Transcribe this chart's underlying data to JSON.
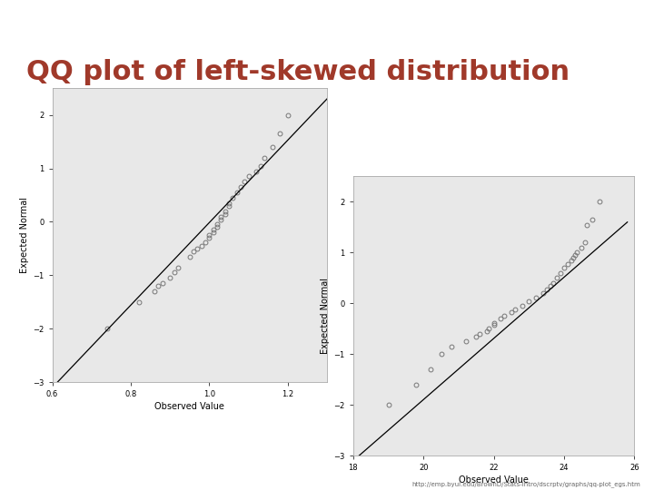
{
  "title": "QQ plot of left-skewed distribution",
  "title_color": "#A0392A",
  "title_fontsize": 22,
  "header_color": "#8B9E96",
  "body_color": "#FFFFFF",
  "plot_bg_color": "#E8E8E8",
  "url_text": "http://emp.byui.edu/BrownD/Stats-intro/dscrptv/graphs/qq-plot_egs.htm",
  "plot1": {
    "xlabel": "Observed Value",
    "ylabel": "Expected Normal",
    "xlim": [
      0.6,
      1.3
    ],
    "ylim": [
      -3.0,
      2.5
    ],
    "xticks": [
      0.6,
      0.8,
      1.0,
      1.2
    ],
    "yticks": [
      -3,
      -2,
      -1,
      0,
      1,
      2
    ],
    "points_x": [
      0.74,
      0.82,
      0.86,
      0.87,
      0.88,
      0.9,
      0.91,
      0.92,
      0.95,
      0.96,
      0.97,
      0.98,
      0.99,
      1.0,
      1.0,
      1.01,
      1.01,
      1.02,
      1.02,
      1.03,
      1.03,
      1.04,
      1.04,
      1.05,
      1.05,
      1.06,
      1.07,
      1.08,
      1.09,
      1.1,
      1.12,
      1.13,
      1.14,
      1.16,
      1.18,
      1.2
    ],
    "points_y": [
      -2.0,
      -1.5,
      -1.3,
      -1.2,
      -1.15,
      -1.05,
      -0.95,
      -0.85,
      -0.65,
      -0.55,
      -0.5,
      -0.45,
      -0.38,
      -0.3,
      -0.25,
      -0.2,
      -0.15,
      -0.1,
      -0.05,
      0.05,
      0.1,
      0.15,
      0.2,
      0.3,
      0.35,
      0.45,
      0.55,
      0.65,
      0.75,
      0.85,
      0.95,
      1.05,
      1.2,
      1.4,
      1.65,
      2.0
    ],
    "line_x": [
      0.6,
      1.3
    ],
    "line_y": [
      -3.1,
      2.3
    ]
  },
  "plot2": {
    "xlabel": "Observed Value",
    "ylabel": "Expected Normal",
    "xlim": [
      18,
      26
    ],
    "ylim": [
      -3.0,
      2.5
    ],
    "xticks": [
      18,
      20,
      22,
      24,
      26
    ],
    "yticks": [
      -3,
      -2,
      -1,
      0,
      1,
      2
    ],
    "points_x": [
      19.0,
      19.8,
      20.2,
      20.5,
      20.8,
      21.2,
      21.5,
      21.6,
      21.8,
      21.85,
      22.0,
      22.0,
      22.2,
      22.3,
      22.5,
      22.6,
      22.8,
      23.0,
      23.2,
      23.4,
      23.5,
      23.6,
      23.7,
      23.8,
      23.9,
      24.0,
      24.1,
      24.2,
      24.25,
      24.3,
      24.35,
      24.5,
      24.6,
      24.65,
      24.8,
      25.0
    ],
    "points_y": [
      -2.0,
      -1.6,
      -1.3,
      -1.0,
      -0.85,
      -0.75,
      -0.65,
      -0.6,
      -0.55,
      -0.5,
      -0.42,
      -0.38,
      -0.3,
      -0.25,
      -0.18,
      -0.12,
      -0.05,
      0.05,
      0.12,
      0.2,
      0.28,
      0.35,
      0.4,
      0.5,
      0.6,
      0.7,
      0.78,
      0.85,
      0.9,
      0.95,
      1.0,
      1.1,
      1.2,
      1.55,
      1.65,
      2.0
    ],
    "line_x": [
      18.0,
      25.8
    ],
    "line_y": [
      -3.1,
      1.6
    ]
  }
}
